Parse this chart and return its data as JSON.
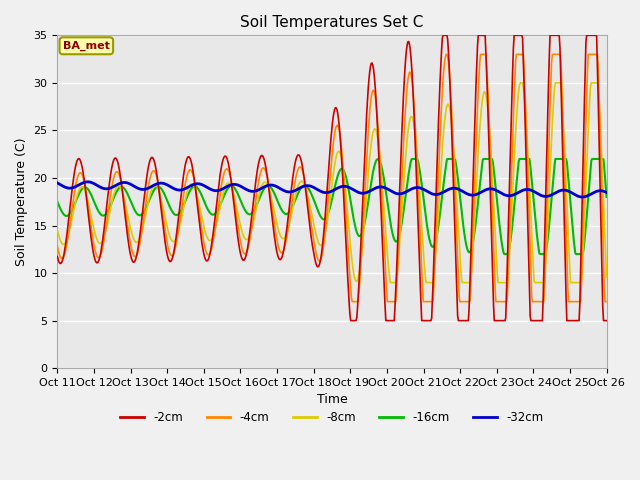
{
  "title": "Soil Temperatures Set C",
  "xlabel": "Time",
  "ylabel": "Soil Temperature (C)",
  "annotation": "BA_met",
  "ylim": [
    0,
    35
  ],
  "x_tick_labels": [
    "Oct 11",
    "Oct 12",
    "Oct 13",
    "Oct 14",
    "Oct 15",
    "Oct 16",
    "Oct 17",
    "Oct 18",
    "Oct 19",
    "Oct 20",
    "Oct 21",
    "Oct 22",
    "Oct 23",
    "Oct 24",
    "Oct 25",
    "Oct 26"
  ],
  "series_colors": {
    "-2cm": "#cc0000",
    "-4cm": "#ff8800",
    "-8cm": "#ddcc00",
    "-16cm": "#00bb00",
    "-32cm": "#0000cc"
  },
  "background_color": "#e8e8e8",
  "fig_bg_color": "#f0f0f0",
  "grid_color": "#ffffff",
  "title_fontsize": 11,
  "tick_fontsize": 8,
  "label_fontsize": 9,
  "days": 15,
  "pts_per_day": 48
}
